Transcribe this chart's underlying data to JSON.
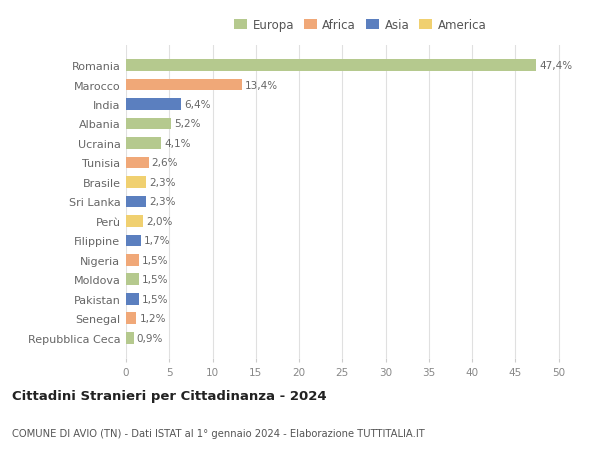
{
  "countries": [
    "Romania",
    "Marocco",
    "India",
    "Albania",
    "Ucraina",
    "Tunisia",
    "Brasile",
    "Sri Lanka",
    "Perù",
    "Filippine",
    "Nigeria",
    "Moldova",
    "Pakistan",
    "Senegal",
    "Repubblica Ceca"
  ],
  "values": [
    47.4,
    13.4,
    6.4,
    5.2,
    4.1,
    2.6,
    2.3,
    2.3,
    2.0,
    1.7,
    1.5,
    1.5,
    1.5,
    1.2,
    0.9
  ],
  "labels": [
    "47,4%",
    "13,4%",
    "6,4%",
    "5,2%",
    "4,1%",
    "2,6%",
    "2,3%",
    "2,3%",
    "2,0%",
    "1,7%",
    "1,5%",
    "1,5%",
    "1,5%",
    "1,2%",
    "0,9%"
  ],
  "continents": [
    "Europa",
    "Africa",
    "Asia",
    "Europa",
    "Europa",
    "Africa",
    "America",
    "Asia",
    "America",
    "Asia",
    "Africa",
    "Europa",
    "Asia",
    "Africa",
    "Europa"
  ],
  "colors": {
    "Europa": "#b5c98e",
    "Africa": "#f0a878",
    "Asia": "#5b7fbf",
    "America": "#f0d070"
  },
  "legend_order": [
    "Europa",
    "Africa",
    "Asia",
    "America"
  ],
  "legend_colors": [
    "#b5c98e",
    "#f0a878",
    "#5b7fbf",
    "#f0d070"
  ],
  "title": "Cittadini Stranieri per Cittadinanza - 2024",
  "subtitle": "COMUNE DI AVIO (TN) - Dati ISTAT al 1° gennaio 2024 - Elaborazione TUTTITALIA.IT",
  "xlim": [
    0,
    52
  ],
  "xticks": [
    0,
    5,
    10,
    15,
    20,
    25,
    30,
    35,
    40,
    45,
    50
  ],
  "background_color": "#ffffff",
  "grid_color": "#e0e0e0",
  "bar_height": 0.6
}
